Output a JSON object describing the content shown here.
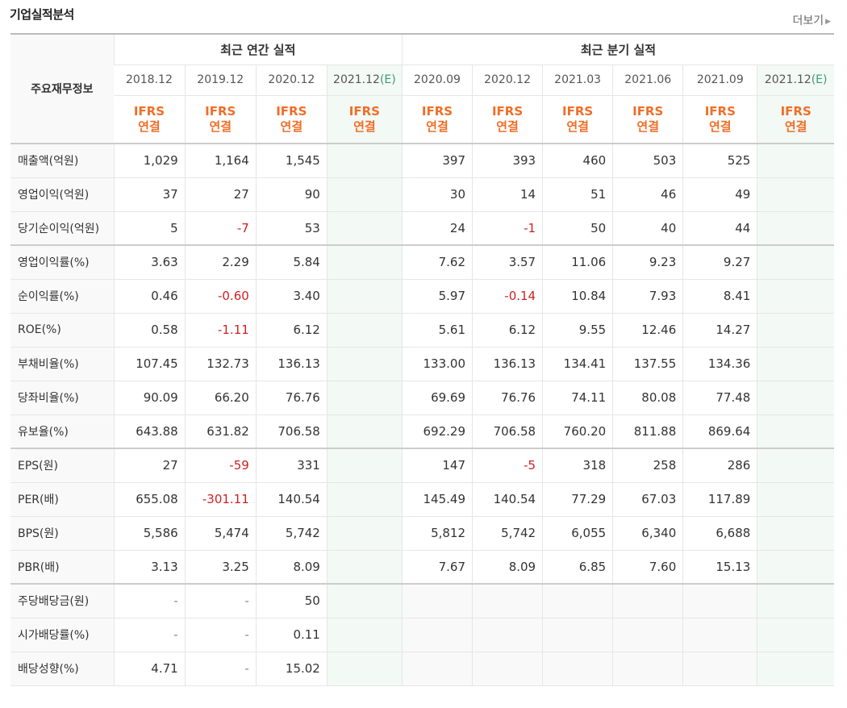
{
  "section": {
    "title": "기업실적분석",
    "more_label": "더보기"
  },
  "table": {
    "corner_label": "주요재무정보",
    "annual_label": "최근 연간 실적",
    "quarter_label": "최근 분기 실적",
    "ifrs_line1": "IFRS",
    "ifrs_line2": "연결",
    "estimate_mark": "(E)",
    "annual_periods": [
      "2018.12",
      "2019.12",
      "2020.12",
      "2021.12"
    ],
    "quarter_periods": [
      "2020.09",
      "2020.12",
      "2021.03",
      "2021.06",
      "2021.09",
      "2021.12"
    ],
    "rows": [
      {
        "label": "매출액(억원)",
        "annual": [
          "1,029",
          "1,164",
          "1,545",
          ""
        ],
        "quarter": [
          "397",
          "393",
          "460",
          "503",
          "525",
          ""
        ]
      },
      {
        "label": "영업이익(억원)",
        "annual": [
          "37",
          "27",
          "90",
          ""
        ],
        "quarter": [
          "30",
          "14",
          "51",
          "46",
          "49",
          ""
        ]
      },
      {
        "label": "당기순이익(억원)",
        "annual": [
          "5",
          "-7",
          "53",
          ""
        ],
        "quarter": [
          "24",
          "-1",
          "50",
          "40",
          "44",
          ""
        ]
      },
      {
        "label": "영업이익률(%)",
        "annual": [
          "3.63",
          "2.29",
          "5.84",
          ""
        ],
        "quarter": [
          "7.62",
          "3.57",
          "11.06",
          "9.23",
          "9.27",
          ""
        ]
      },
      {
        "label": "순이익률(%)",
        "annual": [
          "0.46",
          "-0.60",
          "3.40",
          ""
        ],
        "quarter": [
          "5.97",
          "-0.14",
          "10.84",
          "7.93",
          "8.41",
          ""
        ]
      },
      {
        "label": "ROE(%)",
        "annual": [
          "0.58",
          "-1.11",
          "6.12",
          ""
        ],
        "quarter": [
          "5.61",
          "6.12",
          "9.55",
          "12.46",
          "14.27",
          ""
        ]
      },
      {
        "label": "부채비율(%)",
        "annual": [
          "107.45",
          "132.73",
          "136.13",
          ""
        ],
        "quarter": [
          "133.00",
          "136.13",
          "134.41",
          "137.55",
          "134.36",
          ""
        ]
      },
      {
        "label": "당좌비율(%)",
        "annual": [
          "90.09",
          "66.20",
          "76.76",
          ""
        ],
        "quarter": [
          "69.69",
          "76.76",
          "74.11",
          "80.08",
          "77.48",
          ""
        ]
      },
      {
        "label": "유보율(%)",
        "annual": [
          "643.88",
          "631.82",
          "706.58",
          ""
        ],
        "quarter": [
          "692.29",
          "706.58",
          "760.20",
          "811.88",
          "869.64",
          ""
        ]
      },
      {
        "label": "EPS(원)",
        "annual": [
          "27",
          "-59",
          "331",
          ""
        ],
        "quarter": [
          "147",
          "-5",
          "318",
          "258",
          "286",
          ""
        ]
      },
      {
        "label": "PER(배)",
        "annual": [
          "655.08",
          "-301.11",
          "140.54",
          ""
        ],
        "quarter": [
          "145.49",
          "140.54",
          "77.29",
          "67.03",
          "117.89",
          ""
        ]
      },
      {
        "label": "BPS(원)",
        "annual": [
          "5,586",
          "5,474",
          "5,742",
          ""
        ],
        "quarter": [
          "5,812",
          "5,742",
          "6,055",
          "6,340",
          "6,688",
          ""
        ]
      },
      {
        "label": "PBR(배)",
        "annual": [
          "3.13",
          "3.25",
          "8.09",
          ""
        ],
        "quarter": [
          "7.67",
          "8.09",
          "6.85",
          "7.60",
          "15.13",
          ""
        ]
      },
      {
        "label": "주당배당금(원)",
        "annual": [
          "-",
          "-",
          "50",
          ""
        ],
        "quarter": [
          "",
          "",
          "",
          "",
          "",
          ""
        ]
      },
      {
        "label": "시가배당률(%)",
        "annual": [
          "-",
          "-",
          "0.11",
          ""
        ],
        "quarter": [
          "",
          "",
          "",
          "",
          "",
          ""
        ]
      },
      {
        "label": "배당성향(%)",
        "annual": [
          "4.71",
          "-",
          "15.02",
          ""
        ],
        "quarter": [
          "",
          "",
          "",
          "",
          "",
          ""
        ]
      }
    ],
    "group_starts": [
      3,
      9,
      13
    ],
    "colors": {
      "negative": "#d11f1f",
      "ifrs": "#f06e28",
      "estimate": "#3a9a7e"
    }
  }
}
